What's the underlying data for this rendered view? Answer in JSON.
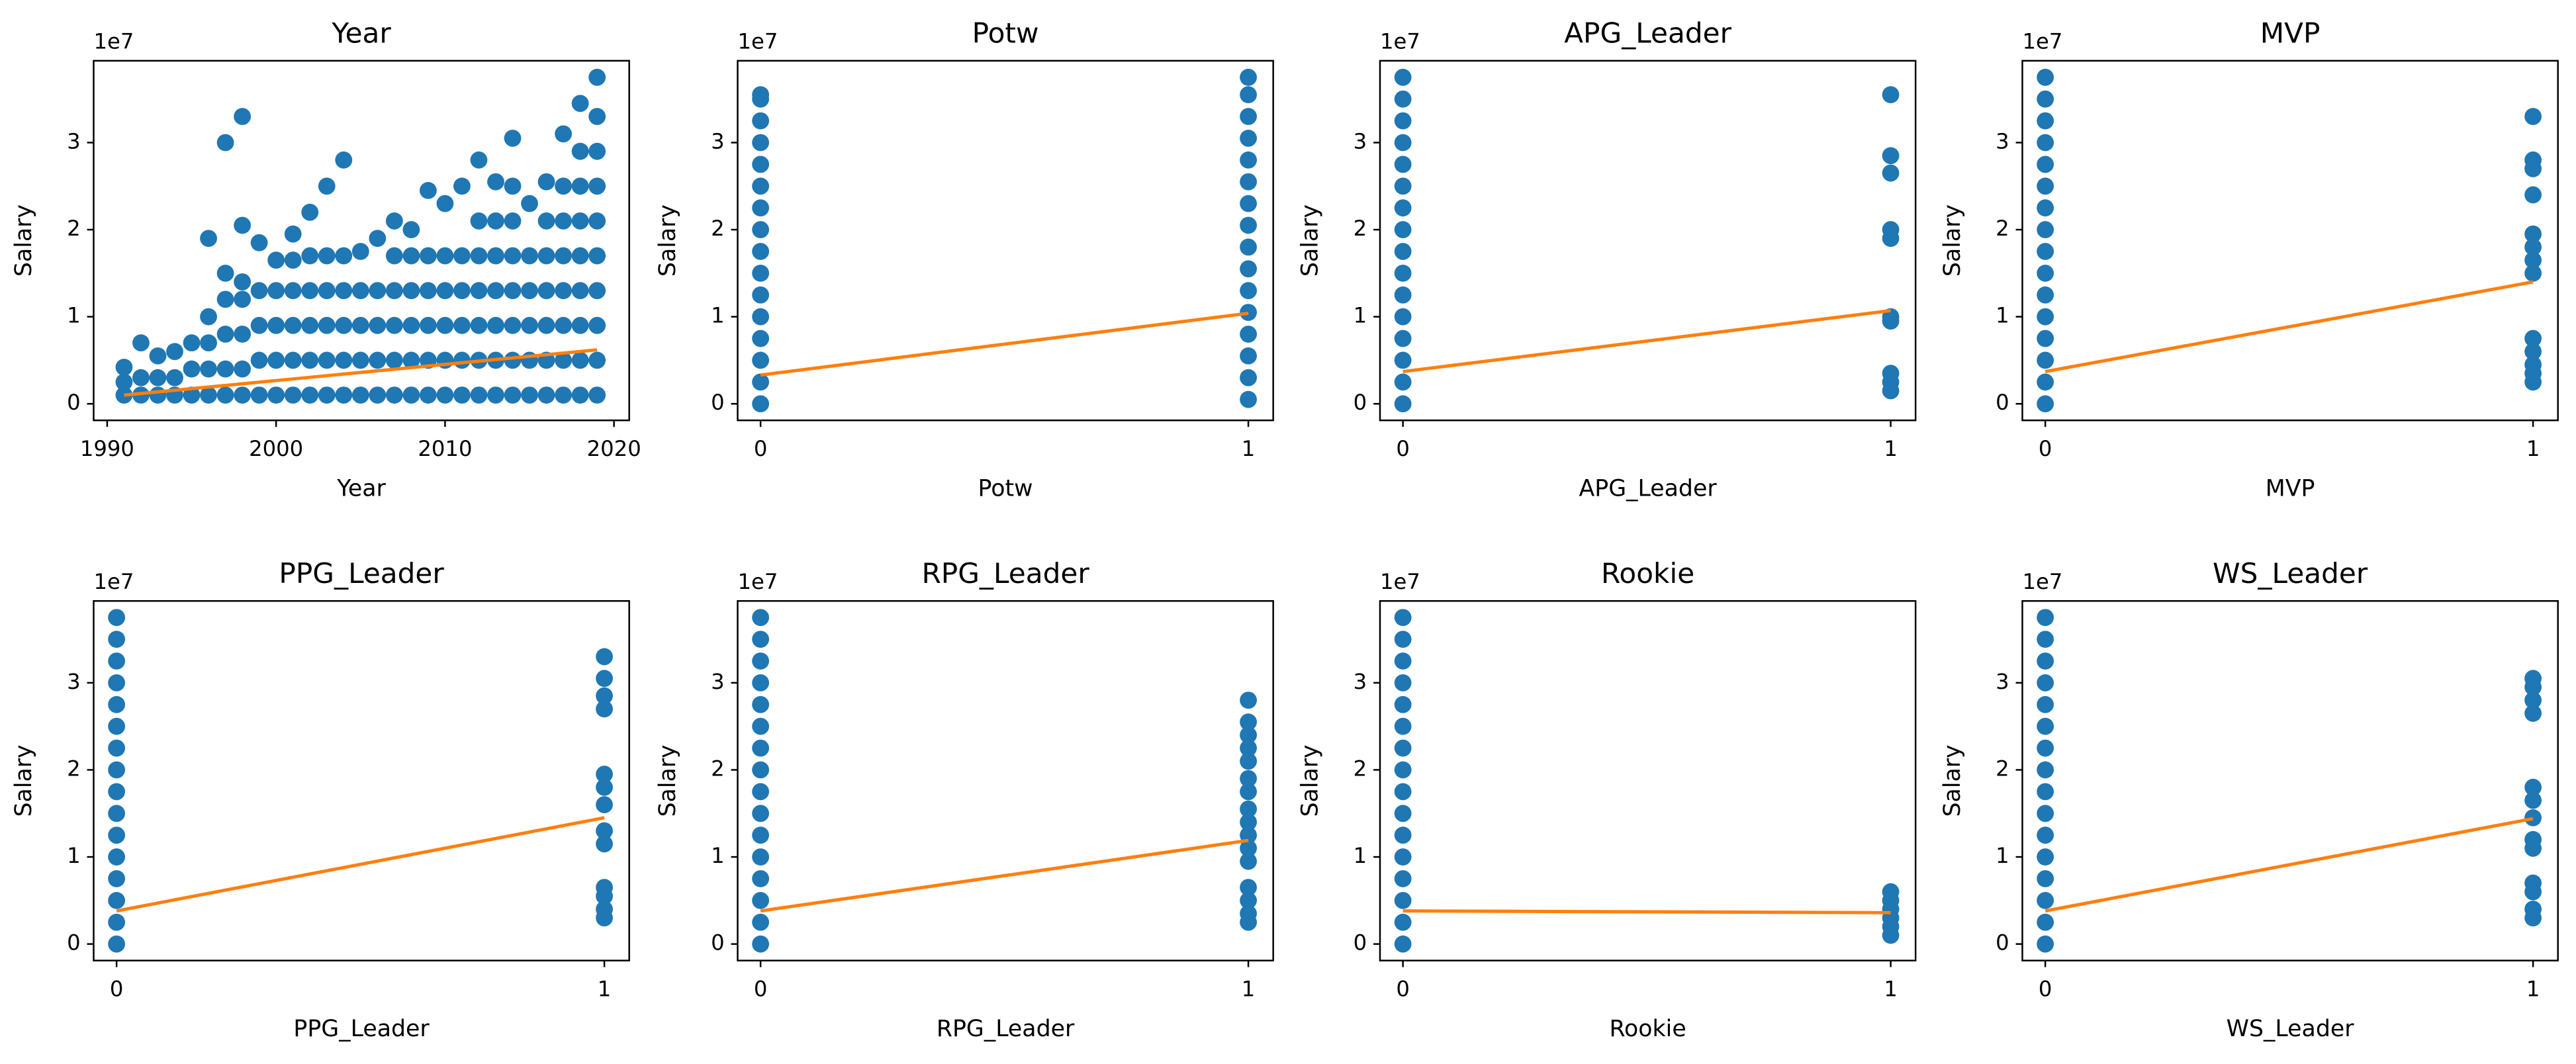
{
  "chart_data": [
    {
      "type": "scatter",
      "title": "Year",
      "xlabel": "Year",
      "ylabel": "Salary",
      "offset_label": "1e7",
      "x": [
        1991,
        1991,
        1991,
        1992,
        1992,
        1992,
        1993,
        1993,
        1993,
        1994,
        1994,
        1994,
        1995,
        1995,
        1995,
        1996,
        1996,
        1996,
        1996,
        1996,
        1997,
        1997,
        1997,
        1997,
        1997,
        1997,
        1998,
        1998,
        1998,
        1998,
        1998,
        1998,
        1998,
        1999,
        1999,
        1999,
        1999,
        1999,
        2000,
        2000,
        2000,
        2000,
        2000,
        2001,
        2001,
        2001,
        2001,
        2001,
        2001,
        2002,
        2002,
        2002,
        2002,
        2002,
        2002,
        2003,
        2003,
        2003,
        2003,
        2003,
        2003,
        2004,
        2004,
        2004,
        2004,
        2004,
        2004,
        2005,
        2005,
        2005,
        2005,
        2005,
        2006,
        2006,
        2006,
        2006,
        2006,
        2007,
        2007,
        2007,
        2007,
        2007,
        2007,
        2008,
        2008,
        2008,
        2008,
        2008,
        2008,
        2009,
        2009,
        2009,
        2009,
        2009,
        2009,
        2010,
        2010,
        2010,
        2010,
        2010,
        2010,
        2011,
        2011,
        2011,
        2011,
        2011,
        2011,
        2012,
        2012,
        2012,
        2012,
        2012,
        2012,
        2012,
        2013,
        2013,
        2013,
        2013,
        2013,
        2013,
        2013,
        2014,
        2014,
        2014,
        2014,
        2014,
        2014,
        2014,
        2014,
        2015,
        2015,
        2015,
        2015,
        2015,
        2015,
        2016,
        2016,
        2016,
        2016,
        2016,
        2016,
        2016,
        2017,
        2017,
        2017,
        2017,
        2017,
        2017,
        2017,
        2017,
        2018,
        2018,
        2018,
        2018,
        2018,
        2018,
        2018,
        2018,
        2018,
        2019,
        2019,
        2019,
        2019,
        2019,
        2019,
        2019,
        2019,
        2019,
        2019
      ],
      "series": [
        {
          "color": "#1f77b4",
          "values": [
            0.1,
            0.25,
            0.42,
            0.1,
            0.3,
            0.7,
            0.1,
            0.3,
            0.55,
            0.1,
            0.3,
            0.6,
            0.1,
            0.4,
            0.7,
            0.1,
            0.4,
            0.7,
            1.0,
            1.9,
            0.1,
            0.4,
            0.8,
            1.2,
            1.5,
            3.0,
            0.1,
            0.4,
            0.8,
            1.2,
            1.4,
            2.05,
            3.3,
            0.1,
            0.5,
            0.9,
            1.3,
            1.85,
            0.1,
            0.5,
            0.9,
            1.3,
            1.65,
            0.1,
            0.5,
            0.9,
            1.3,
            1.65,
            1.95,
            0.1,
            0.5,
            0.9,
            1.3,
            1.7,
            2.2,
            0.1,
            0.5,
            0.9,
            1.3,
            1.7,
            2.5,
            0.1,
            0.5,
            0.9,
            1.3,
            1.7,
            2.8,
            0.1,
            0.5,
            0.9,
            1.3,
            1.75,
            0.1,
            0.5,
            0.9,
            1.3,
            1.9,
            0.1,
            0.5,
            0.9,
            1.3,
            1.7,
            2.1,
            0.1,
            0.5,
            0.9,
            1.3,
            1.7,
            2.0,
            0.1,
            0.5,
            0.9,
            1.3,
            1.7,
            2.45,
            0.1,
            0.5,
            0.9,
            1.3,
            1.7,
            2.3,
            0.1,
            0.5,
            0.9,
            1.3,
            1.7,
            2.5,
            0.1,
            0.5,
            0.9,
            1.3,
            1.7,
            2.1,
            2.8,
            0.1,
            0.5,
            0.9,
            1.3,
            1.7,
            2.1,
            2.55,
            0.1,
            0.5,
            0.9,
            1.3,
            1.7,
            2.1,
            2.5,
            3.05,
            0.1,
            0.5,
            0.9,
            1.3,
            1.7,
            2.3,
            0.1,
            0.5,
            0.9,
            1.3,
            1.7,
            2.1,
            2.55,
            0.1,
            0.5,
            0.9,
            1.3,
            1.7,
            2.1,
            2.5,
            3.1,
            0.1,
            0.5,
            0.9,
            1.3,
            1.7,
            2.1,
            2.5,
            2.9,
            3.45,
            0.1,
            0.5,
            0.9,
            1.3,
            1.7,
            2.1,
            2.5,
            2.9,
            3.3,
            3.75
          ]
        }
      ],
      "fit": {
        "color": "#ff7f0e",
        "x": [
          1991,
          2019
        ],
        "values": [
          0.1,
          0.62
        ]
      },
      "xlim": [
        1989.2,
        2020.9
      ],
      "ylim": [
        -0.19,
        3.94
      ],
      "xticks": [
        1990,
        2000,
        2010,
        2020
      ],
      "yticks": [
        0,
        1,
        2,
        3
      ]
    },
    {
      "type": "scatter",
      "title": "Potw",
      "xlabel": "Potw",
      "ylabel": "Salary",
      "offset_label": "1e7",
      "x": [
        0,
        0,
        0,
        0,
        0,
        0,
        0,
        0,
        0,
        0,
        0,
        0,
        0,
        0,
        0,
        0,
        1,
        1,
        1,
        1,
        1,
        1,
        1,
        1,
        1,
        1,
        1,
        1,
        1,
        1,
        1,
        1
      ],
      "series": [
        {
          "color": "#1f77b4",
          "values": [
            0,
            0.25,
            0.5,
            0.75,
            1,
            1.25,
            1.5,
            1.75,
            2,
            2.25,
            2.5,
            2.75,
            3,
            3.25,
            3.5,
            3.55,
            0.05,
            0.3,
            0.55,
            0.8,
            1.05,
            1.3,
            1.55,
            1.8,
            2.05,
            2.3,
            2.55,
            2.8,
            3.05,
            3.3,
            3.55,
            3.75
          ]
        }
      ],
      "fit": {
        "color": "#ff7f0e",
        "x": [
          0,
          1
        ],
        "values": [
          0.33,
          1.04
        ]
      },
      "xlim": [
        -0.047,
        1.051
      ],
      "ylim": [
        -0.19,
        3.94
      ],
      "xticks": [
        0,
        1
      ],
      "yticks": [
        0,
        1,
        2,
        3
      ]
    },
    {
      "type": "scatter",
      "title": "APG_Leader",
      "xlabel": "APG_Leader",
      "ylabel": "Salary",
      "offset_label": "1e7",
      "x": [
        0,
        0,
        0,
        0,
        0,
        0,
        0,
        0,
        0,
        0,
        0,
        0,
        0,
        0,
        0,
        0,
        1,
        1,
        1,
        1,
        1,
        1,
        1,
        1,
        1,
        1
      ],
      "series": [
        {
          "color": "#1f77b4",
          "values": [
            0,
            0.25,
            0.5,
            0.75,
            1,
            1.25,
            1.5,
            1.75,
            2,
            2.25,
            2.5,
            2.75,
            3,
            3.25,
            3.5,
            3.75,
            3.55,
            2.85,
            2.65,
            2.0,
            1.9,
            1.0,
            0.95,
            0.35,
            0.25,
            0.15
          ]
        }
      ],
      "fit": {
        "color": "#ff7f0e",
        "x": [
          0,
          1
        ],
        "values": [
          0.37,
          1.07
        ]
      },
      "xlim": [
        -0.047,
        1.051
      ],
      "ylim": [
        -0.19,
        3.94
      ],
      "xticks": [
        0,
        1
      ],
      "yticks": [
        0,
        1,
        2,
        3
      ]
    },
    {
      "type": "scatter",
      "title": "MVP",
      "xlabel": "MVP",
      "ylabel": "Salary",
      "offset_label": "1e7",
      "x": [
        0,
        0,
        0,
        0,
        0,
        0,
        0,
        0,
        0,
        0,
        0,
        0,
        0,
        0,
        0,
        0,
        1,
        1,
        1,
        1,
        1,
        1,
        1,
        1,
        1,
        1,
        1,
        1,
        1
      ],
      "series": [
        {
          "color": "#1f77b4",
          "values": [
            0,
            0.25,
            0.5,
            0.75,
            1,
            1.25,
            1.5,
            1.75,
            2,
            2.25,
            2.5,
            2.75,
            3,
            3.25,
            3.5,
            3.75,
            3.3,
            2.8,
            2.7,
            2.4,
            1.95,
            1.8,
            1.65,
            1.5,
            0.75,
            0.6,
            0.45,
            0.35,
            0.25
          ]
        }
      ],
      "fit": {
        "color": "#ff7f0e",
        "x": [
          0,
          1
        ],
        "values": [
          0.37,
          1.4
        ]
      },
      "xlim": [
        -0.047,
        1.051
      ],
      "ylim": [
        -0.19,
        3.94
      ],
      "xticks": [
        0,
        1
      ],
      "yticks": [
        0,
        1,
        2,
        3
      ]
    },
    {
      "type": "scatter",
      "title": "PPG_Leader",
      "xlabel": "PPG_Leader",
      "ylabel": "Salary",
      "offset_label": "1e7",
      "x": [
        0,
        0,
        0,
        0,
        0,
        0,
        0,
        0,
        0,
        0,
        0,
        0,
        0,
        0,
        0,
        0,
        1,
        1,
        1,
        1,
        1,
        1,
        1,
        1,
        1,
        1,
        1,
        1,
        1
      ],
      "series": [
        {
          "color": "#1f77b4",
          "values": [
            0,
            0.25,
            0.5,
            0.75,
            1,
            1.25,
            1.5,
            1.75,
            2,
            2.25,
            2.5,
            2.75,
            3,
            3.25,
            3.5,
            3.75,
            3.3,
            3.05,
            2.85,
            2.7,
            1.95,
            1.8,
            1.6,
            1.3,
            1.15,
            0.65,
            0.55,
            0.4,
            0.3
          ]
        }
      ],
      "fit": {
        "color": "#ff7f0e",
        "x": [
          0,
          1
        ],
        "values": [
          0.38,
          1.45
        ]
      },
      "xlim": [
        -0.047,
        1.051
      ],
      "ylim": [
        -0.19,
        3.94
      ],
      "xticks": [
        0,
        1
      ],
      "yticks": [
        0,
        1,
        2,
        3
      ]
    },
    {
      "type": "scatter",
      "title": "RPG_Leader",
      "xlabel": "RPG_Leader",
      "ylabel": "Salary",
      "offset_label": "1e7",
      "x": [
        0,
        0,
        0,
        0,
        0,
        0,
        0,
        0,
        0,
        0,
        0,
        0,
        0,
        0,
        0,
        0,
        1,
        1,
        1,
        1,
        1,
        1,
        1,
        1,
        1,
        1,
        1,
        1,
        1,
        1,
        1,
        1
      ],
      "series": [
        {
          "color": "#1f77b4",
          "values": [
            0,
            0.25,
            0.5,
            0.75,
            1,
            1.25,
            1.5,
            1.75,
            2,
            2.25,
            2.5,
            2.75,
            3,
            3.25,
            3.5,
            3.75,
            2.8,
            2.55,
            2.4,
            2.25,
            2.1,
            1.9,
            1.75,
            1.55,
            1.4,
            1.25,
            1.1,
            0.95,
            0.65,
            0.5,
            0.35,
            0.25
          ]
        }
      ],
      "fit": {
        "color": "#ff7f0e",
        "x": [
          0,
          1
        ],
        "values": [
          0.38,
          1.19
        ]
      },
      "xlim": [
        -0.047,
        1.051
      ],
      "ylim": [
        -0.19,
        3.94
      ],
      "xticks": [
        0,
        1
      ],
      "yticks": [
        0,
        1,
        2,
        3
      ]
    },
    {
      "type": "scatter",
      "title": "Rookie",
      "xlabel": "Rookie",
      "ylabel": "Salary",
      "offset_label": "1e7",
      "x": [
        0,
        0,
        0,
        0,
        0,
        0,
        0,
        0,
        0,
        0,
        0,
        0,
        0,
        0,
        0,
        0,
        1,
        1,
        1,
        1,
        1,
        1
      ],
      "series": [
        {
          "color": "#1f77b4",
          "values": [
            0,
            0.25,
            0.5,
            0.75,
            1,
            1.25,
            1.5,
            1.75,
            2,
            2.25,
            2.5,
            2.75,
            3,
            3.25,
            3.5,
            3.75,
            0.6,
            0.5,
            0.4,
            0.3,
            0.2,
            0.1
          ]
        }
      ],
      "fit": {
        "color": "#ff7f0e",
        "x": [
          0,
          1
        ],
        "values": [
          0.38,
          0.36
        ]
      },
      "xlim": [
        -0.047,
        1.051
      ],
      "ylim": [
        -0.19,
        3.94
      ],
      "xticks": [
        0,
        1
      ],
      "yticks": [
        0,
        1,
        2,
        3
      ]
    },
    {
      "type": "scatter",
      "title": "WS_Leader",
      "xlabel": "WS_Leader",
      "ylabel": "Salary",
      "offset_label": "1e7",
      "x": [
        0,
        0,
        0,
        0,
        0,
        0,
        0,
        0,
        0,
        0,
        0,
        0,
        0,
        0,
        0,
        0,
        1,
        1,
        1,
        1,
        1,
        1,
        1,
        1,
        1,
        1,
        1,
        1,
        1
      ],
      "series": [
        {
          "color": "#1f77b4",
          "values": [
            0,
            0.25,
            0.5,
            0.75,
            1,
            1.25,
            1.5,
            1.75,
            2,
            2.25,
            2.5,
            2.75,
            3,
            3.25,
            3.5,
            3.75,
            3.05,
            2.95,
            2.8,
            2.65,
            1.8,
            1.65,
            1.45,
            1.2,
            1.1,
            0.7,
            0.6,
            0.4,
            0.3
          ]
        }
      ],
      "fit": {
        "color": "#ff7f0e",
        "x": [
          0,
          1
        ],
        "values": [
          0.38,
          1.44
        ]
      },
      "xlim": [
        -0.047,
        1.051
      ],
      "ylim": [
        -0.19,
        3.94
      ],
      "xticks": [
        0,
        1
      ],
      "yticks": [
        0,
        1,
        2,
        3
      ]
    }
  ]
}
